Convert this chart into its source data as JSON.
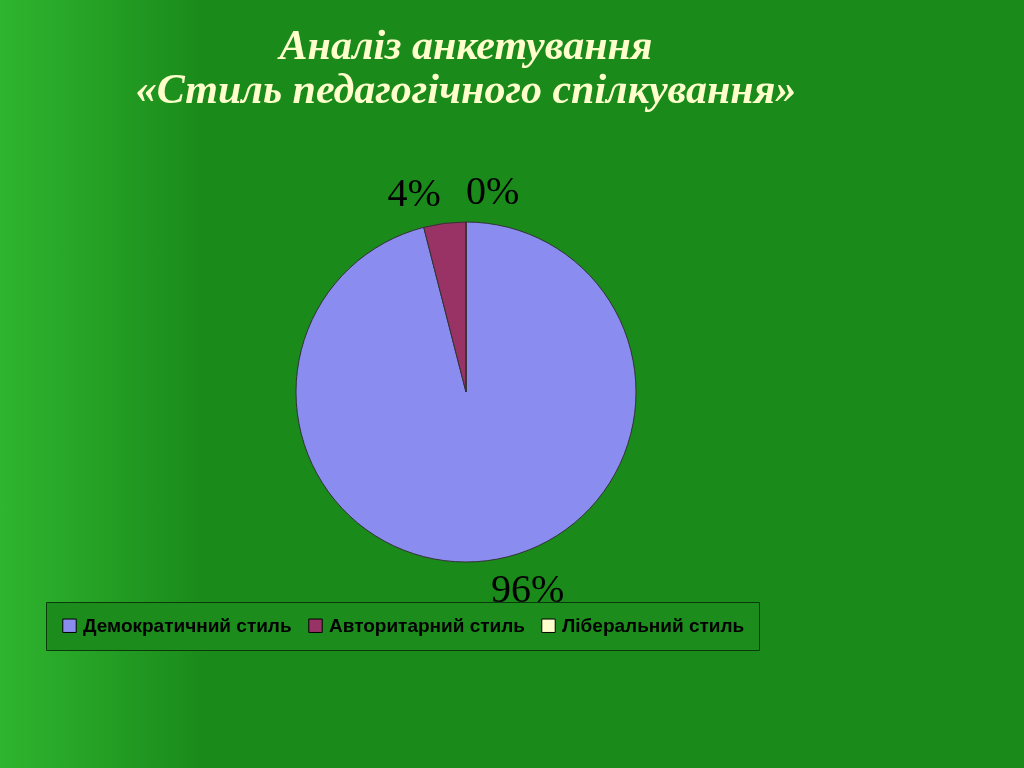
{
  "chart_data": {
    "type": "pie",
    "title": "Аналіз анкетування\n«Стиль педагогічного спілкування»",
    "categories": [
      "Демократичний стиль",
      "Авторитарний стиль",
      "Ліберальний стиль"
    ],
    "values": [
      96,
      4,
      0
    ],
    "colors": [
      "#8b8cef",
      "#993366",
      "#ffffcc"
    ],
    "value_labels": [
      "96%",
      "4%",
      "0%"
    ],
    "legend": "bottom"
  }
}
